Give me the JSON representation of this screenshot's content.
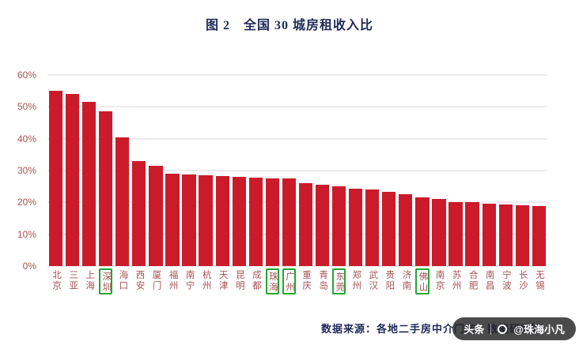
{
  "title": "图 2　全国 30 城房租收入比",
  "source": "数据来源：各地二手房中介门店；数据研究院",
  "watermark": {
    "brand": "头条",
    "handle": "@珠海小凡"
  },
  "chart_data": {
    "type": "bar",
    "title": "图 2　全国 30 城房租收入比",
    "categories": [
      "北京",
      "三亚",
      "上海",
      "深圳",
      "海口",
      "西安",
      "厦门",
      "福州",
      "南宁",
      "杭州",
      "天津",
      "昆明",
      "成都",
      "珠海",
      "广州",
      "重庆",
      "青岛",
      "东莞",
      "郑州",
      "武汉",
      "贵阳",
      "济南",
      "佛山",
      "南京",
      "苏州",
      "合肥",
      "南昌",
      "宁波",
      "长沙",
      "无锡"
    ],
    "values": [
      55,
      54,
      51.5,
      48.6,
      40.5,
      33,
      31.5,
      29,
      28.7,
      28.5,
      28.2,
      27.9,
      27.7,
      27.6,
      27.5,
      26,
      25.5,
      25,
      24.2,
      24,
      23.2,
      22.5,
      21.5,
      21,
      20.2,
      20,
      19.6,
      19.4,
      19.1,
      18.8
    ],
    "highlighted": [
      "深圳",
      "珠海",
      "广州",
      "东莞",
      "佛山"
    ],
    "yticks": [
      "0%",
      "10%",
      "20%",
      "30%",
      "40%",
      "50%",
      "60%"
    ],
    "ylim": [
      0,
      60
    ],
    "grid": true,
    "legend": "none",
    "bar_color": "#cb1b2b",
    "highlight_color": "#1fa832",
    "axis_text_color": "#a85252",
    "title_color": "#1f2a5a"
  }
}
